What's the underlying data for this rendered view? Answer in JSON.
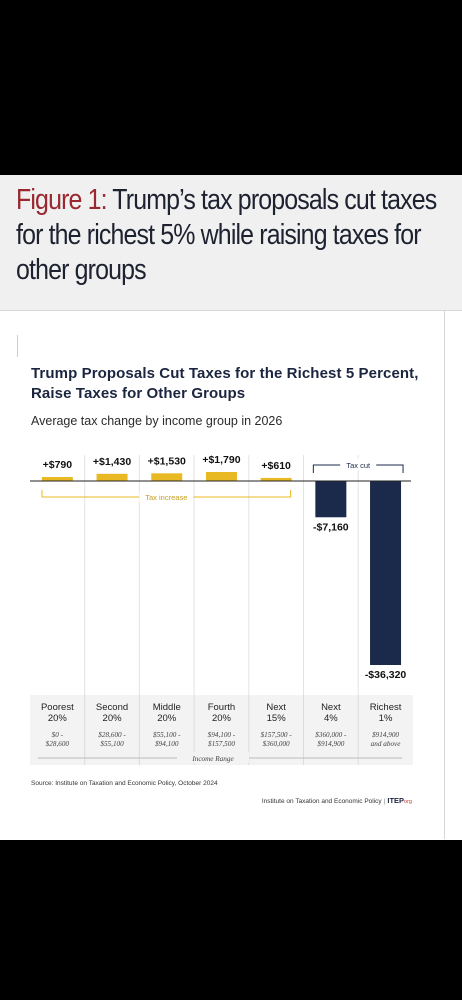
{
  "figure": {
    "title_lead": "Figure 1:",
    "title_rest": " Trump’s tax proposals cut taxes for the richest 5% while raising taxes for other groups"
  },
  "chart_data": {
    "type": "bar",
    "title": "Trump Proposals Cut Taxes for the Richest 5 Percent, Raise Taxes for Other Groups",
    "subtitle": "Average tax change by income group in 2026",
    "xlabel": "Income Range",
    "categories": [
      "Poorest 20%",
      "Second 20%",
      "Middle 20%",
      "Fourth 20%",
      "Next 15%",
      "Next 4%",
      "Richest 1%"
    ],
    "groups": [
      {
        "line1": "Poorest",
        "line2": "20%",
        "range1": "$0 -",
        "range2": "$28,600"
      },
      {
        "line1": "Second",
        "line2": "20%",
        "range1": "$28,600 -",
        "range2": "$55,100"
      },
      {
        "line1": "Middle",
        "line2": "20%",
        "range1": "$55,100 -",
        "range2": "$94,100"
      },
      {
        "line1": "Fourth",
        "line2": "20%",
        "range1": "$94,100 -",
        "range2": "$157,500"
      },
      {
        "line1": "Next",
        "line2": "15%",
        "range1": "$157,500 -",
        "range2": "$360,000"
      },
      {
        "line1": "Next",
        "line2": "4%",
        "range1": "$360,000 -",
        "range2": "$914,900"
      },
      {
        "line1": "Richest",
        "line2": "1%",
        "range1": "$914,900",
        "range2": "and above"
      }
    ],
    "values": [
      790,
      1430,
      1530,
      1790,
      610,
      -7160,
      -36320
    ],
    "value_labels": [
      "+$790",
      "+$1,430",
      "+$1,530",
      "+$1,790",
      "+$610",
      "-$7,160",
      "-$36,320"
    ],
    "annotations": {
      "increase": "Tax increase",
      "cut": "Tax cut"
    },
    "colors": {
      "increase": "#e8b923",
      "cut": "#1b2a4a"
    },
    "ylim": [
      -36320,
      1790
    ],
    "grid": false,
    "legend": "none",
    "source": "Source: Institute on Taxation and Economic Policy, October 2024",
    "credit_name": "Institute on Taxation and Economic Policy",
    "credit_sep": "|",
    "credit_logo": "ITEP",
    "credit_logo_suffix": "org"
  }
}
